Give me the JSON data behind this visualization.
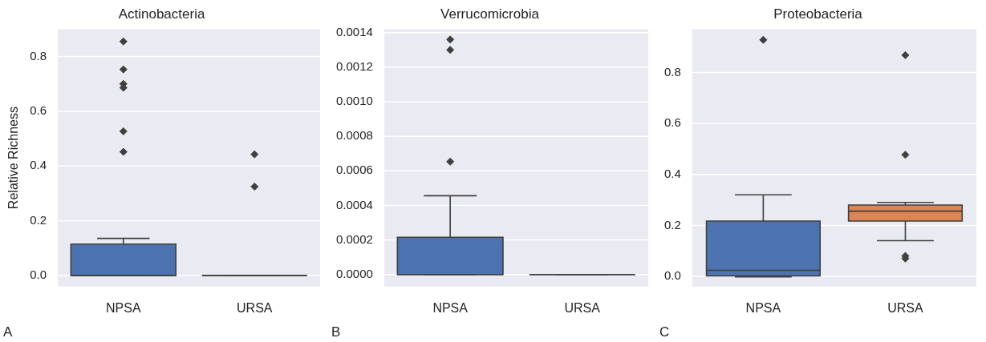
{
  "chart_data": [
    {
      "type": "box",
      "title": "Actinobacteria",
      "ylabel": "Relative Richness",
      "categories": [
        "NPSA",
        "URSA"
      ],
      "colors": [
        "#4c72b0",
        "#3f3f3f"
      ],
      "boxes": [
        {
          "low": 0,
          "q1": 0,
          "median": 0,
          "q3": 0.115,
          "high": 0.136,
          "outliers": [
            0.855,
            0.753,
            0.7,
            0.686,
            0.527,
            0.452
          ]
        },
        {
          "low": 0,
          "q1": 0,
          "median": 0,
          "q3": 0,
          "high": 0,
          "outliers": [
            0.443,
            0.325
          ]
        }
      ],
      "ylim": [
        -0.04,
        0.9
      ],
      "yticks": [
        {
          "value": 0,
          "label": "0.0"
        },
        {
          "value": 0.2,
          "label": "0.2"
        },
        {
          "value": 0.4,
          "label": "0.4"
        },
        {
          "value": 0.6,
          "label": "0.6"
        },
        {
          "value": 0.8,
          "label": "0.8"
        }
      ],
      "grid": "y",
      "marker": "diamond",
      "annotations": [
        "A"
      ]
    },
    {
      "type": "box",
      "title": "Verrucomicrobia",
      "categories": [
        "NPSA",
        "URSA"
      ],
      "colors": [
        "#4c72b0",
        "#3f3f3f"
      ],
      "boxes": [
        {
          "low": 0,
          "q1": 0,
          "median": 0,
          "q3": 0.000215,
          "high": 0.000456,
          "outliers": [
            0.00136,
            0.0013,
            0.000653
          ]
        },
        {
          "low": 0,
          "q1": 0,
          "median": 0,
          "q3": 0,
          "high": 0
        }
      ],
      "ylim": [
        -7e-05,
        0.00142
      ],
      "yticks": [
        {
          "value": 0,
          "label": "0.0000"
        },
        {
          "value": 0.0002,
          "label": "0.0002"
        },
        {
          "value": 0.0004,
          "label": "0.0004"
        },
        {
          "value": 0.0006,
          "label": "0.0006"
        },
        {
          "value": 0.0008,
          "label": "0.0008"
        },
        {
          "value": 0.001,
          "label": "0.0010"
        },
        {
          "value": 0.0012,
          "label": "0.0012"
        },
        {
          "value": 0.0014,
          "label": "0.0014"
        }
      ],
      "grid": "y",
      "marker": "diamond",
      "annotations": [
        "B"
      ]
    },
    {
      "type": "box",
      "title": "Proteobacteria",
      "categories": [
        "NPSA",
        "URSA"
      ],
      "colors": [
        "#4c72b0",
        "#dd8452"
      ],
      "boxes": [
        {
          "low": -0.002,
          "q1": 0.002,
          "median": 0.024,
          "q3": 0.217,
          "high": 0.32,
          "outliers": [
            0.928
          ]
        },
        {
          "low": 0.14,
          "q1": 0.217,
          "median": 0.256,
          "q3": 0.28,
          "high": 0.29,
          "outliers": [
            0.868,
            0.477,
            0.08,
            0.07
          ]
        }
      ],
      "ylim": [
        -0.04,
        0.97
      ],
      "yticks": [
        {
          "value": 0,
          "label": "0.0"
        },
        {
          "value": 0.2,
          "label": "0.2"
        },
        {
          "value": 0.4,
          "label": "0.4"
        },
        {
          "value": 0.6,
          "label": "0.6"
        },
        {
          "value": 0.8,
          "label": "0.8"
        }
      ],
      "grid": "y",
      "marker": "diamond",
      "annotations": [
        "C"
      ]
    }
  ]
}
